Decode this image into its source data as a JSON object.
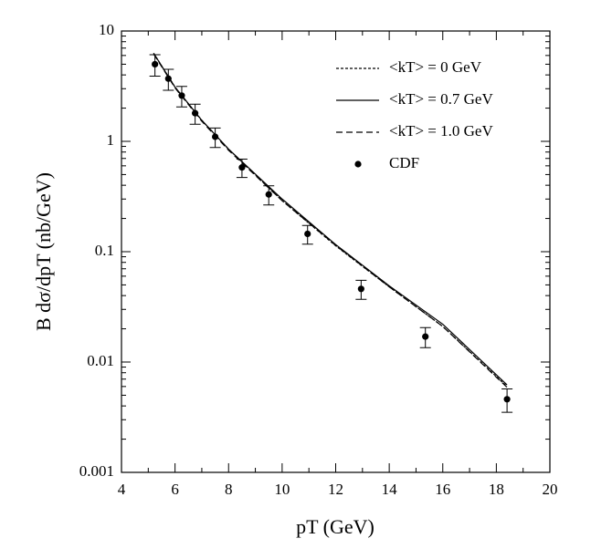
{
  "chart_data": {
    "type": "line",
    "xlabel": "pT  (GeV)",
    "ylabel": "B dσ/dpT  (nb/GeV)",
    "xlim": [
      4,
      20
    ],
    "xticks": [
      4,
      6,
      8,
      10,
      12,
      14,
      16,
      18,
      20
    ],
    "ylim": [
      0.001,
      10
    ],
    "yticks": [
      10,
      1,
      0.1,
      0.01,
      0.001
    ],
    "ylog": true,
    "series": [
      {
        "name": "<kT> = 0 GeV",
        "color": "#000000",
        "dash": "3,2",
        "x": [
          5.2,
          6,
          7,
          8,
          10,
          12,
          14,
          16,
          18.4
        ],
        "values": [
          6.3,
          3.1,
          1.55,
          0.85,
          0.29,
          0.113,
          0.048,
          0.021,
          0.006
        ]
      },
      {
        "name": "<kT> = 0.7 GeV",
        "color": "#000000",
        "dash": "none",
        "x": [
          5.2,
          6,
          7,
          8,
          10,
          12,
          14,
          16,
          18.4
        ],
        "values": [
          6.3,
          3.1,
          1.55,
          0.85,
          0.3,
          0.116,
          0.049,
          0.022,
          0.0062
        ]
      },
      {
        "name": "<kT> = 1.0 GeV",
        "color": "#000000",
        "dash": "7,4",
        "x": [
          5.2,
          6,
          7,
          8,
          10,
          12,
          14,
          16,
          18.4
        ],
        "values": [
          6.2,
          3.05,
          1.52,
          0.83,
          0.29,
          0.114,
          0.048,
          0.021,
          0.0059
        ]
      }
    ],
    "points": {
      "name": "CDF",
      "color": "#000000",
      "x": [
        5.25,
        5.75,
        6.25,
        6.75,
        7.5,
        8.5,
        9.5,
        10.95,
        12.95,
        15.35,
        18.4
      ],
      "values": [
        5.0,
        3.7,
        2.6,
        1.8,
        1.1,
        0.58,
        0.33,
        0.145,
        0.046,
        0.017,
        0.0046
      ],
      "errors": [
        1.1,
        0.8,
        0.55,
        0.37,
        0.22,
        0.11,
        0.065,
        0.028,
        0.009,
        0.0035,
        0.0011
      ]
    }
  }
}
